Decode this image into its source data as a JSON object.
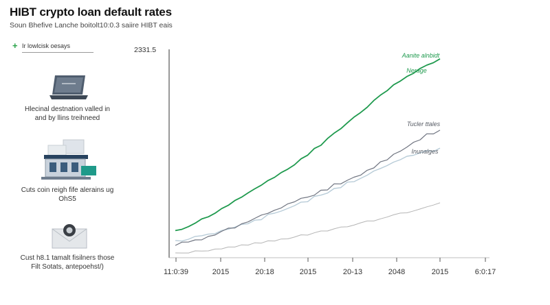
{
  "title": "HIBT crypto loan default rates",
  "subtitle": "Soun Bhefive Lanche boitolt10:0.3 saiire HIBT eais",
  "sidebar": {
    "header": "Ir lowlcisk oesays",
    "items": [
      {
        "caption_line1": "Hlecinal destnation valled in",
        "caption_line2": "and by llins treihneed",
        "icon": "laptop-icon"
      },
      {
        "caption_line1": "Cuts coin reigh fife alerains ug",
        "caption_line2": "OhS5",
        "icon": "building-icon"
      },
      {
        "caption_line1": "Cust h8.1 tamalt fisilners those",
        "caption_line2": "Filt Sotats, antepoehst/)",
        "icon": "envelope-icon"
      }
    ]
  },
  "colors": {
    "green": "#1f9a4e",
    "dark_gray": "#6f7480",
    "light_blue": "#b8ccd8",
    "light_gray": "#b4b4b4",
    "axis": "#555555"
  },
  "chart_data": {
    "type": "line",
    "y_top_label": "2331.5",
    "x_tick_labels": [
      "11:0:39",
      "2015",
      "20:18",
      "2015",
      "20-13",
      "2048",
      "2015",
      "6:0:17"
    ],
    "annotations": [
      {
        "text": "Aanite alnbidt",
        "series": "green"
      },
      {
        "text": "Nerage",
        "series": "green"
      },
      {
        "text": "Tucler ttales",
        "series": "dark_gray"
      },
      {
        "text": "Inunalges",
        "series": "light_blue"
      }
    ],
    "ylim": [
      0,
      100
    ],
    "x": [
      0,
      1,
      2,
      3,
      4,
      5,
      6,
      7,
      8,
      9,
      10,
      11,
      12,
      13,
      14,
      15,
      16,
      17,
      18,
      19,
      20,
      21,
      22,
      23,
      24,
      25,
      26,
      27,
      28,
      29,
      30,
      31,
      32,
      33,
      34,
      35,
      36,
      37,
      38,
      39,
      40
    ],
    "series": [
      {
        "key": "green",
        "values": [
          12,
          13,
          14,
          16,
          18,
          19,
          21,
          23,
          25,
          27,
          29,
          31,
          33,
          35,
          37,
          39,
          41,
          43,
          45,
          48,
          50,
          53,
          55,
          58,
          61,
          63,
          66,
          69,
          71,
          74,
          77,
          80,
          82,
          85,
          87,
          89,
          91,
          93,
          95,
          96,
          98
        ]
      },
      {
        "key": "dark_gray",
        "values": [
          5,
          6,
          7,
          7,
          8,
          9,
          10,
          12,
          13,
          14,
          15,
          17,
          18,
          20,
          21,
          22,
          24,
          25,
          27,
          28,
          29,
          30,
          32,
          33,
          35,
          36,
          37,
          39,
          40,
          42,
          44,
          46,
          48,
          50,
          52,
          54,
          56,
          58,
          60,
          61,
          62
        ]
      },
      {
        "key": "light_blue",
        "values": [
          7,
          7,
          8,
          9,
          10,
          10,
          11,
          12,
          13,
          14,
          15,
          16,
          17,
          18,
          20,
          21,
          22,
          23,
          25,
          26,
          27,
          29,
          30,
          31,
          33,
          34,
          36,
          37,
          38,
          40,
          42,
          43,
          45,
          46,
          48,
          49,
          50,
          51,
          52,
          52,
          53
        ]
      },
      {
        "key": "light_gray",
        "values": [
          1,
          1,
          1,
          2,
          2,
          2,
          3,
          3,
          4,
          4,
          5,
          5,
          6,
          6,
          7,
          7,
          8,
          8,
          9,
          10,
          10,
          11,
          12,
          12,
          13,
          14,
          14,
          15,
          16,
          17,
          17,
          18,
          19,
          20,
          21,
          21,
          22,
          23,
          24,
          25,
          26
        ]
      }
    ]
  }
}
